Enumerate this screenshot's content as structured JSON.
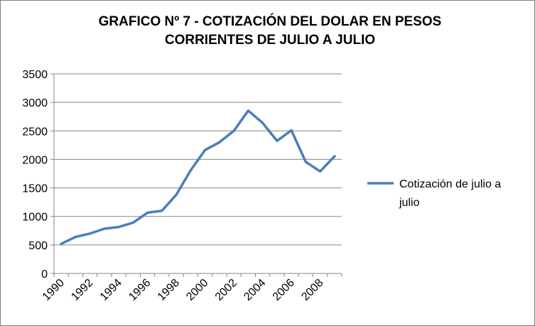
{
  "chart_data": {
    "type": "line",
    "title_lines": [
      "GRAFICO Nº 7 - COTIZACIÓN DEL DOLAR EN PESOS",
      "CORRIENTES DE JULIO A JULIO"
    ],
    "xlabel": "",
    "ylabel": "",
    "ylim": [
      0,
      3500
    ],
    "yticks": [
      0,
      500,
      1000,
      1500,
      2000,
      2500,
      3000,
      3500
    ],
    "x": [
      1990,
      1991,
      1992,
      1993,
      1994,
      1995,
      1996,
      1997,
      1998,
      1999,
      2000,
      2001,
      2002,
      2003,
      2004,
      2005,
      2006,
      2007,
      2008,
      2009
    ],
    "xtick_labels": [
      "1990",
      "1992",
      "1994",
      "1996",
      "1998",
      "2000",
      "2002",
      "2004",
      "2006",
      "2008"
    ],
    "series": [
      {
        "name": "Cotización de julio a julio",
        "legend_lines": [
          "Cotización de julio a",
          "julio"
        ],
        "color": "#4a7ebb",
        "values": [
          520,
          640,
          700,
          785,
          815,
          890,
          1065,
          1100,
          1380,
          1810,
          2165,
          2300,
          2500,
          2855,
          2640,
          2325,
          2510,
          1955,
          1790,
          2055
        ]
      }
    ],
    "grid": true,
    "legend_position": "right"
  }
}
